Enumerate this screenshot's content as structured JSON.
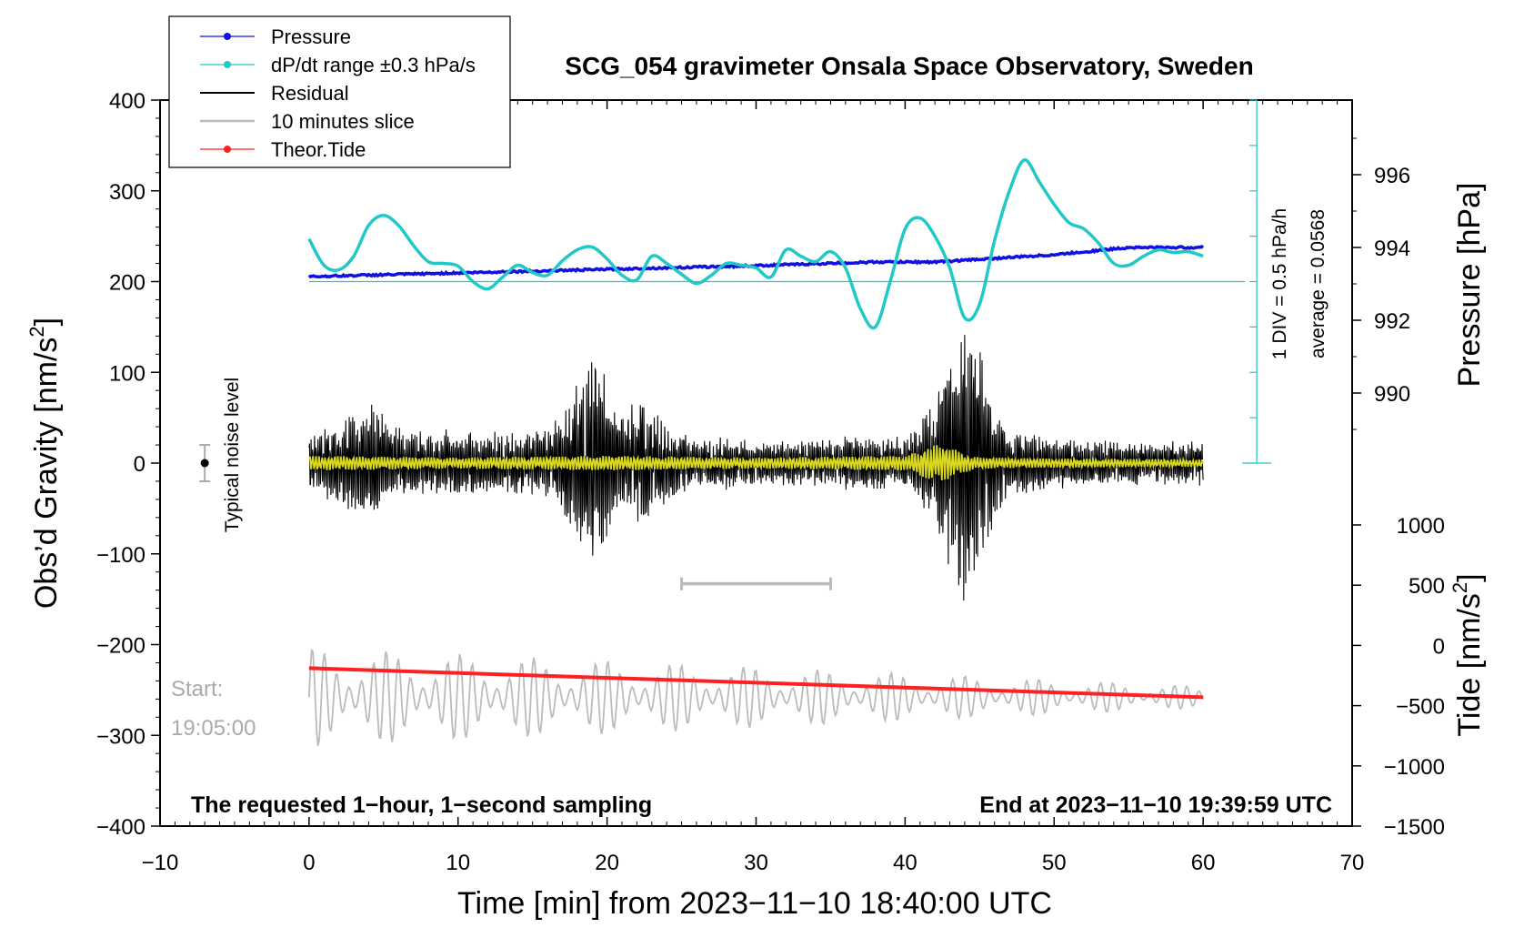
{
  "chart_data": {
    "type": "line",
    "title": "SCG_054 gravimeter Onsala Space Observatory, Sweden",
    "xlabel": "Time [min] from 2023−11−10 18:40:00 UTC",
    "ylabel_left": "Obs’d Gravity [nm/s",
    "ylabel_left_sup": "2",
    "ylabel_left_close": "]",
    "ylabel_right_pressure": "Pressure [hPa]",
    "ylabel_right_tide": "Tide [nm/s",
    "ylabel_right_tide_sup": "2",
    "ylabel_right_tide_close": "]",
    "xlim": [
      -10,
      70
    ],
    "ylim_left": [
      -400,
      400
    ],
    "x_ticks": [
      "−10",
      "0",
      "10",
      "20",
      "30",
      "40",
      "50",
      "60",
      "70"
    ],
    "y_ticks_left": [
      "400",
      "300",
      "200",
      "100",
      "0",
      "−100",
      "−200",
      "−300",
      "−400"
    ],
    "pressure_ticks": [
      "996",
      "994",
      "992",
      "990"
    ],
    "pressure_tick_values": [
      996,
      994,
      992,
      990
    ],
    "tide_ticks": [
      "1000",
      "500",
      "0",
      "−500",
      "−1000",
      "−1500"
    ],
    "tide_tick_values": [
      1000,
      500,
      0,
      -500,
      -1000,
      -1500
    ],
    "legend": [
      {
        "label": "Pressure",
        "color": "#1010e0",
        "marker": true
      },
      {
        "label": "dP/dt range ±0.3 hPa/s",
        "color": "#20c8c8",
        "marker": true
      },
      {
        "label": "Residual",
        "color": "#000000",
        "marker": false
      },
      {
        "label": "10 minutes slice",
        "color": "#bbbbbb",
        "marker": false
      },
      {
        "label": "Theor.Tide",
        "color": "#ff2020",
        "marker": true
      }
    ],
    "annotations": {
      "typical_noise": "Typical noise level",
      "div_note": "1 DIV = 0.5 hPa/h",
      "average_note": "average = 0.0568",
      "start_label": "Start:",
      "start_time": "19:05:00",
      "bottom_left": "The requested 1−hour, 1−second sampling",
      "bottom_right": "End at 2023−11−10 19:39:59 UTC"
    },
    "series": [
      {
        "name": "Pressure",
        "unit": "hPa",
        "color": "#1010e0",
        "x": [
          0,
          10,
          20,
          30,
          38,
          42,
          50,
          55,
          60
        ],
        "y": [
          993.2,
          993.3,
          993.4,
          993.5,
          993.6,
          993.6,
          993.8,
          994.0,
          994.0
        ]
      },
      {
        "name": "dP/dt",
        "unit": "gravity-axis",
        "color": "#20c8c8",
        "x": [
          0,
          1,
          2,
          3,
          4,
          5,
          6,
          7,
          8,
          9,
          10,
          11,
          12,
          13,
          14,
          15,
          16,
          17,
          18,
          19,
          20,
          21,
          22,
          23,
          24,
          25,
          26,
          27,
          28,
          29,
          30,
          31,
          32,
          33,
          34,
          35,
          36,
          37,
          38,
          39,
          40,
          41,
          42,
          43,
          44,
          45,
          46,
          47,
          48,
          49,
          50,
          51,
          52,
          53,
          54,
          55,
          56,
          57,
          58,
          59,
          60
        ],
        "y": [
          247,
          218,
          213,
          228,
          262,
          273,
          262,
          240,
          222,
          220,
          217,
          200,
          192,
          205,
          218,
          210,
          207,
          223,
          235,
          238,
          225,
          207,
          202,
          228,
          220,
          208,
          198,
          207,
          220,
          218,
          215,
          205,
          235,
          228,
          222,
          233,
          215,
          170,
          150,
          200,
          258,
          270,
          250,
          215,
          160,
          175,
          245,
          300,
          334,
          310,
          285,
          265,
          258,
          242,
          220,
          218,
          228,
          235,
          232,
          233,
          228
        ]
      },
      {
        "name": "dP/dt baseline",
        "x": [
          0,
          62.8
        ],
        "y": [
          200,
          200
        ]
      },
      {
        "name": "Residual envelope",
        "color": "#000000",
        "x": [
          0,
          2,
          4,
          6,
          8,
          10,
          12,
          14,
          16,
          17,
          18,
          19,
          20,
          21,
          22,
          23,
          24,
          25,
          26,
          28,
          30,
          32,
          34,
          36,
          38,
          40,
          41,
          42,
          43,
          44,
          45,
          46,
          47,
          48,
          50,
          52,
          54,
          56,
          58,
          60
        ],
        "y": [
          35,
          45,
          70,
          40,
          35,
          40,
          35,
          35,
          40,
          60,
          90,
          120,
          95,
          55,
          75,
          75,
          50,
          35,
          25,
          30,
          25,
          25,
          25,
          30,
          30,
          30,
          45,
          80,
          120,
          160,
          130,
          70,
          40,
          35,
          30,
          25,
          25,
          25,
          25,
          25
        ]
      },
      {
        "name": "Residual filtered (yellow)",
        "color": "#d8d820",
        "x": [
          0,
          10,
          20,
          30,
          40,
          41,
          42,
          43,
          44,
          45,
          50,
          60
        ],
        "y": [
          8,
          6,
          8,
          6,
          8,
          14,
          20,
          18,
          10,
          6,
          5,
          4
        ]
      },
      {
        "name": "Theor.Tide",
        "unit": "nm/s2",
        "color": "#ff2020",
        "x": [
          0,
          60
        ],
        "y": [
          -205,
          -440
        ]
      },
      {
        "name": "10 minutes slice",
        "color": "#bbbbbb",
        "x_range": [
          0,
          60
        ],
        "y_center": -258,
        "amplitude_start": 55,
        "amplitude_end": 12
      }
    ],
    "slice_marker": {
      "x_start": 25,
      "x_end": 35,
      "y": -133
    },
    "noise_bar": {
      "x": -7,
      "y_center": 0,
      "half_range": 20
    }
  }
}
